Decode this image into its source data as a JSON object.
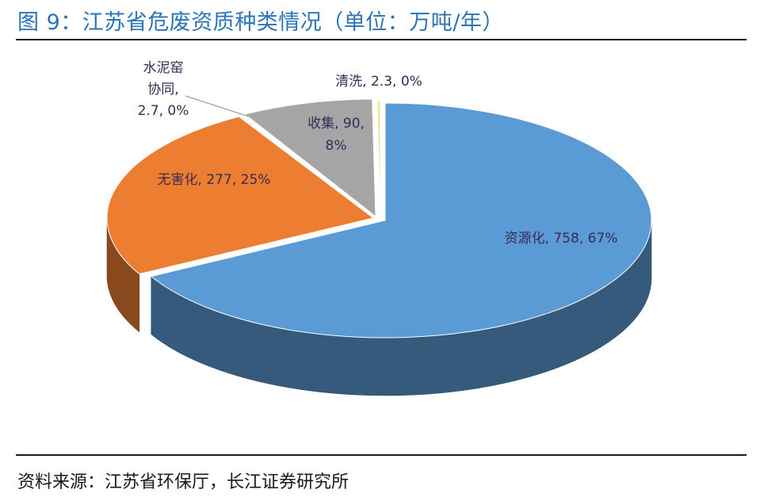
{
  "header": {
    "title": "图 9：江苏省危废资质种类情况（单位：万吨/年）"
  },
  "footer": {
    "source": "资料来源：江苏省环保厅，长江证券研究所"
  },
  "chart_data": {
    "type": "pie",
    "three_d": true,
    "title": "图 9：江苏省危废资质种类情况（单位：万吨/年）",
    "unit": "万吨/年",
    "legend": "none",
    "slices": [
      {
        "name": "资源化",
        "value": 758,
        "percent_label": "67%",
        "color": "#5b9bd5",
        "label": {
          "line1": "资源化, 758, 67%"
        }
      },
      {
        "name": "无害化",
        "value": 277,
        "percent_label": "25%",
        "color": "#ed7d31",
        "label": {
          "line1": "无害化, 277, 25%"
        }
      },
      {
        "name": "水泥窑协同",
        "value": 2.7,
        "percent_label": "0%",
        "color": "#ffc000",
        "label": {
          "line1": "水泥窑",
          "line2": "协同,",
          "line3": "2.7, 0%"
        }
      },
      {
        "name": "收集",
        "value": 90,
        "percent_label": "8%",
        "color": "#a5a5a5",
        "label": {
          "line1": "收集, 90,",
          "line2": "8%"
        }
      },
      {
        "name": "清洗",
        "value": 2.3,
        "percent_label": "0%",
        "color": "#f2e4a0",
        "label": {
          "line1": "清洗, 2.3, 0%"
        }
      }
    ]
  }
}
